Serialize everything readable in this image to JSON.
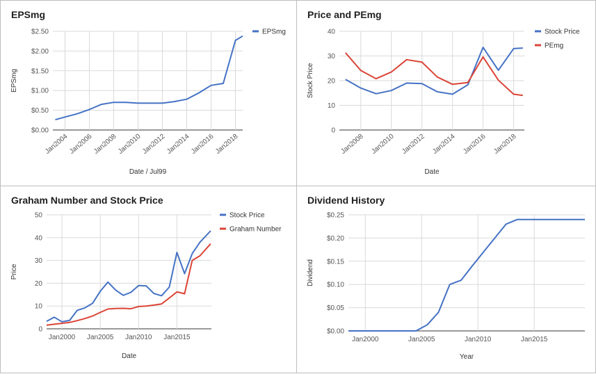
{
  "chart_data": [
    {
      "type": "line",
      "title": "EPSmg",
      "xlabel": "Date / Jul99",
      "ylabel": "EPSmg",
      "y_ticks": [
        "$0.00",
        "$0.50",
        "$1.00",
        "$1.50",
        "$2.00",
        "$2.50"
      ],
      "x_ticks": [
        "Jan2004",
        "Jan2006",
        "Jan2008",
        "Jan2010",
        "Jan2012",
        "Jan2014",
        "Jan2016",
        "Jan2018"
      ],
      "ylim": [
        0,
        2.5
      ],
      "xlim": [
        2003,
        2018.6
      ],
      "grid": true,
      "legend_position": "right",
      "series": [
        {
          "name": "EPSmg",
          "color": "#4472c4",
          "x": [
            2003.2,
            2004,
            2005,
            2006,
            2007,
            2008,
            2009,
            2010,
            2011,
            2012,
            2013,
            2014,
            2015,
            2016,
            2017,
            2018,
            2018.6
          ],
          "y": [
            0.26,
            0.33,
            0.41,
            0.52,
            0.65,
            0.7,
            0.7,
            0.68,
            0.68,
            0.68,
            0.72,
            0.78,
            0.94,
            1.13,
            1.18,
            2.27,
            2.38
          ]
        }
      ]
    },
    {
      "type": "line",
      "title": "Price and PEmg",
      "xlabel": "Date",
      "ylabel": "Stock Price",
      "y_ticks": [
        "0",
        "10",
        "20",
        "30",
        "40"
      ],
      "x_ticks": [
        "Jan2008",
        "Jan2010",
        "Jan2012",
        "Jan2014",
        "Jan2016",
        "Jan2018"
      ],
      "ylim": [
        0,
        40
      ],
      "xlim": [
        2006.6,
        2018.7
      ],
      "grid": true,
      "legend_position": "right",
      "series": [
        {
          "name": "Stock Price",
          "color": "#4472c4",
          "x": [
            2007,
            2008,
            2009,
            2010,
            2011,
            2012,
            2013,
            2014,
            2015,
            2016,
            2017,
            2018,
            2018.6
          ],
          "y": [
            20.5,
            17,
            14.7,
            16,
            19,
            18.8,
            15.5,
            14.5,
            18.3,
            33.5,
            24.2,
            33,
            33.2
          ]
        },
        {
          "name": "PEmg",
          "color": "#db4437",
          "x": [
            2007,
            2008,
            2009,
            2010,
            2011,
            2012,
            2013,
            2014,
            2015,
            2016,
            2017,
            2018,
            2018.6
          ],
          "y": [
            31.3,
            24.1,
            20.8,
            23.5,
            28.5,
            27.5,
            21.5,
            18.5,
            19.2,
            29.6,
            20.2,
            14.5,
            14
          ]
        }
      ]
    },
    {
      "type": "line",
      "title": "Graham Number and Stock Price",
      "xlabel": "Date",
      "ylabel": "Price",
      "y_ticks": [
        "0",
        "10",
        "20",
        "30",
        "40",
        "50"
      ],
      "x_ticks": [
        "Jan2000",
        "Jan2005",
        "Jan2010",
        "Jan2015"
      ],
      "ylim": [
        0,
        50
      ],
      "xlim": [
        1998,
        2019.5
      ],
      "grid": true,
      "legend_position": "right",
      "series": [
        {
          "name": "Stock Price",
          "color": "#4472c4",
          "x": [
            1998,
            1999,
            2000,
            2001,
            2002,
            2003,
            2004,
            2005,
            2006,
            2007,
            2008,
            2009,
            2010,
            2011,
            2012,
            2013,
            2014,
            2015,
            2016,
            2017,
            2018,
            2019.4
          ],
          "y": [
            3.3,
            5.1,
            3.1,
            3.7,
            8.1,
            9.2,
            11.2,
            16.5,
            20.5,
            17,
            14.7,
            16,
            19,
            18.8,
            15.5,
            14.5,
            18.3,
            33.5,
            24.2,
            33,
            38,
            43
          ]
        },
        {
          "name": "Graham Number",
          "color": "#db4437",
          "x": [
            1998,
            1999,
            2000,
            2001,
            2002,
            2003,
            2004,
            2005,
            2006,
            2007,
            2008,
            2009,
            2010,
            2011,
            2012,
            2013,
            2014,
            2015,
            2016,
            2017,
            2018,
            2019.4
          ],
          "y": [
            1.6,
            2.0,
            2.4,
            2.8,
            3.6,
            4.5,
            5.6,
            7.2,
            8.7,
            8.9,
            9.0,
            8.8,
            9.8,
            10.0,
            10.4,
            10.9,
            13.5,
            16.2,
            15.4,
            30,
            32,
            37.3
          ]
        }
      ]
    },
    {
      "type": "line",
      "title": "Dividend History",
      "xlabel": "Year",
      "ylabel": "Dividend",
      "y_ticks": [
        "$0.00",
        "$0.05",
        "$0.10",
        "$0.15",
        "$0.20",
        "$0.25"
      ],
      "x_ticks": [
        "Jan2000",
        "Jan2005",
        "Jan2010",
        "Jan2015"
      ],
      "ylim": [
        0,
        0.25
      ],
      "xlim": [
        1998.5,
        2019.5
      ],
      "grid": true,
      "legend_position": "none",
      "series": [
        {
          "name": "",
          "color": "#4472c4",
          "x": [
            1998.5,
            2004.5,
            2005.5,
            2006.5,
            2007.5,
            2008.5,
            2009.5,
            2010.5,
            2011.5,
            2012.5,
            2013.5,
            2019.5
          ],
          "y": [
            0,
            0,
            0.013,
            0.04,
            0.1,
            0.109,
            0.14,
            0.17,
            0.2,
            0.23,
            0.24,
            0.24
          ]
        }
      ]
    }
  ]
}
